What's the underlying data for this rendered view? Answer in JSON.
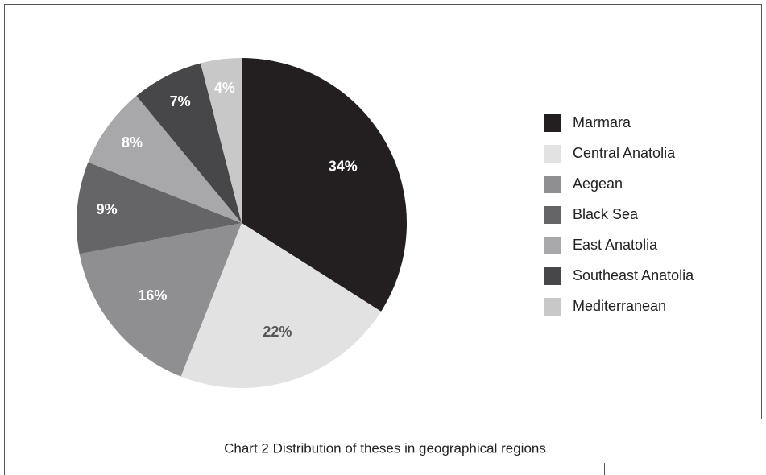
{
  "chart_data": {
    "type": "pie",
    "caption": "Chart 2 Distribution of theses in geographical regions",
    "categories": [
      "Marmara",
      "Central Anatolia",
      "Aegean",
      "Black Sea",
      "East Anatolia",
      "Southeast Anatolia",
      "Mediterranean"
    ],
    "values": [
      34,
      22,
      16,
      9,
      8,
      7,
      4
    ],
    "value_labels": [
      "34%",
      "22%",
      "16%",
      "9%",
      "8%",
      "7%",
      "4%"
    ],
    "colors": [
      "#231f20",
      "#e2e2e3",
      "#8f8f91",
      "#656567",
      "#a8a8aa",
      "#474749",
      "#c8c8c9"
    ],
    "legend": "right"
  }
}
